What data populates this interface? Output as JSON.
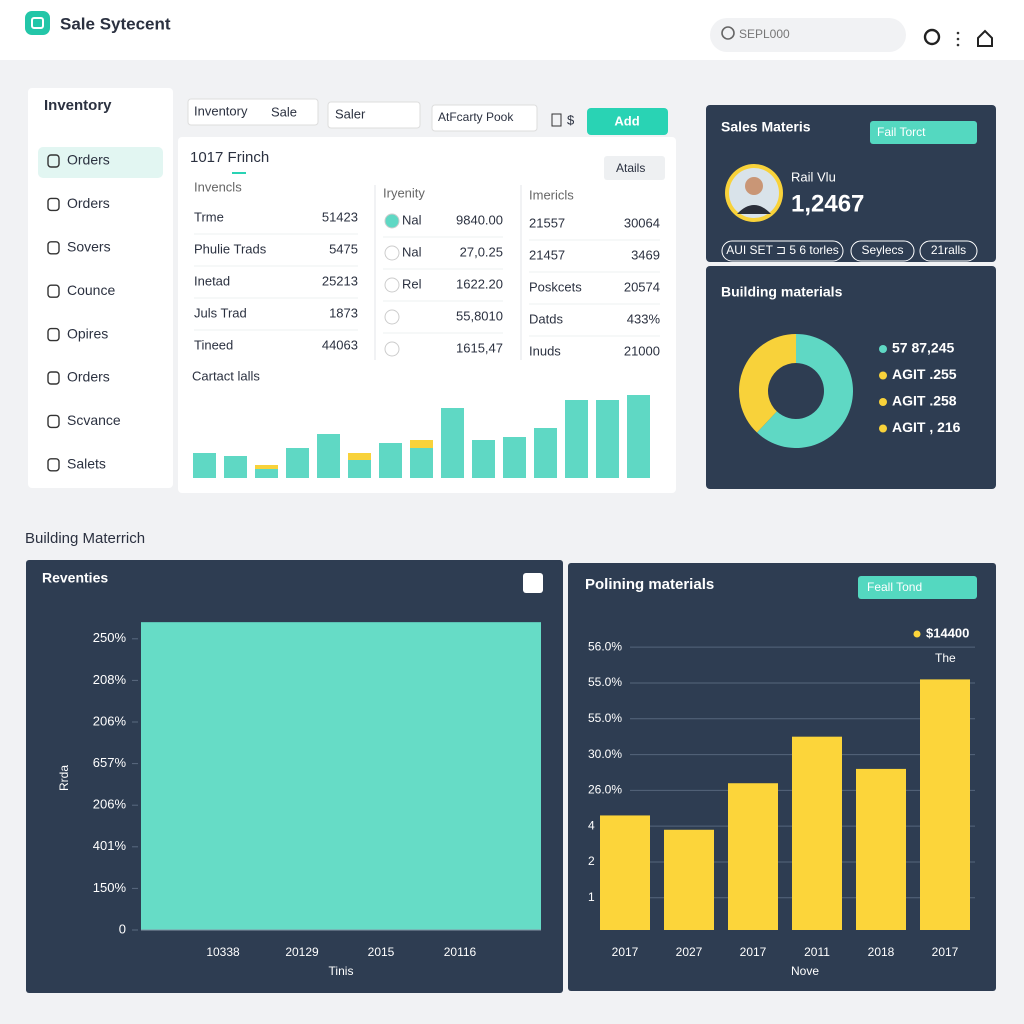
{
  "header": {
    "title": "Sale Sytecent",
    "search": "SEPL000"
  },
  "sidebar": {
    "title": "Inventory",
    "items": [
      "Orders",
      "Orders",
      "Sovers",
      "Counce",
      "Opires",
      "Orders",
      "Scvance",
      "Salets"
    ]
  },
  "toolbar": {
    "filters": [
      {
        "label": "Inventory",
        "value": "Sale"
      },
      {
        "value": "Saler"
      },
      {
        "value": "AtFcarty Pook"
      }
    ],
    "currency": "$",
    "button": "Add"
  },
  "table_panel": {
    "title": "1017 Frinch",
    "dropdown": "Atails",
    "groups": [
      {
        "header": "Invencls",
        "rows": [
          {
            "label": "Trme",
            "value": "51423"
          },
          {
            "label": "Phulie Trads",
            "value": "5475"
          },
          {
            "label": "Inetad",
            "value": "25213"
          },
          {
            "label": "Juls Trad",
            "value": "1873"
          },
          {
            "label": "Tineed",
            "value": "44063"
          }
        ]
      },
      {
        "header": "Iryenity",
        "rows": [
          {
            "label": "Nal",
            "value": "9840.00"
          },
          {
            "label": "Nal",
            "value": "27,0.25"
          },
          {
            "label": "Rel",
            "value": "1622.20"
          },
          {
            "value": "55,8010"
          },
          {
            "value": "1615,47"
          }
        ]
      },
      {
        "header": "Imericls",
        "rows": [
          {
            "label": "21557",
            "value": "30064"
          },
          {
            "label": "21457",
            "value": "3469"
          },
          {
            "label": "Poskcets",
            "value": "20574"
          },
          {
            "label": "Datds",
            "value": "433%"
          },
          {
            "label": "Inuds",
            "value": "21000"
          }
        ]
      }
    ],
    "chart": {
      "type": "bar",
      "title": "Cartact lalls",
      "ylim": [
        0,
        90
      ],
      "series": [
        {
          "color": "#5fd8c4",
          "values": [
            25,
            22,
            9,
            30,
            44,
            18,
            35,
            30,
            70,
            38,
            41,
            50,
            78,
            78,
            83
          ]
        },
        {
          "color": "#f8d23a",
          "values": [
            0,
            0,
            4,
            0,
            0,
            7,
            0,
            8,
            0,
            0,
            0,
            0,
            0,
            0,
            0
          ]
        }
      ]
    }
  },
  "sales_panel": {
    "title": "Sales Materis",
    "dropdown": "Fail Torct",
    "person": "Rail Vlu",
    "amount": "1,2467",
    "tags": [
      "AUI SET ⊐ 5 6 torles",
      "Seylecs",
      "21ralls"
    ]
  },
  "donut_panel": {
    "type": "pie",
    "title": "Building materials",
    "values": [
      62,
      38
    ],
    "colors": [
      "#5fd8c4",
      "#f8d23a"
    ],
    "legend": [
      {
        "label": "57 87,245",
        "color": "#5fd8c4"
      },
      {
        "label": "AGIT .255",
        "color": "#f8d23a"
      },
      {
        "label": "AGIT .258",
        "color": "#f8d23a"
      },
      {
        "label": "AGIT , 216",
        "color": "#f8d23a"
      }
    ]
  },
  "section_title": "Building Materrich",
  "revenue_chart": {
    "type": "area",
    "title": "Reventies",
    "color": "#66dcc6",
    "value": 7.4,
    "ylim": [
      0,
      7.6
    ],
    "yticks": [
      {
        "value": 7,
        "label": "250%"
      },
      {
        "value": 6,
        "label": "208%"
      },
      {
        "value": 5,
        "label": "206%"
      },
      {
        "value": 4,
        "label": "657%"
      },
      {
        "value": 3,
        "label": "206%"
      },
      {
        "value": 2,
        "label": "401%"
      },
      {
        "value": 1,
        "label": "150%"
      },
      0
    ],
    "categories": [
      "10338",
      "20129",
      "2015",
      "20116"
    ],
    "x_label": "Tinis",
    "y_label": "Rrda"
  },
  "yellow_chart": {
    "type": "bar",
    "title": "Polining materials",
    "dropdown": "Feall Tond",
    "legend": "$14400",
    "legend_note": "The",
    "color": "#fcd53a",
    "ylim": [
      0,
      8.1
    ],
    "yticks": [
      {
        "value": 7.9,
        "label": "56.0%"
      },
      {
        "value": 6.9,
        "label": "55.0%"
      },
      {
        "value": 5.9,
        "label": "55.0%"
      },
      {
        "value": 4.9,
        "label": "30.0%"
      },
      {
        "value": 3.9,
        "label": "26.0%"
      },
      {
        "value": 2.9,
        "label": "4"
      },
      {
        "value": 1.9,
        "label": "2"
      },
      {
        "value": 0.9,
        "label": "1"
      }
    ],
    "categories": [
      "2017",
      "2027",
      "2017",
      "2011",
      "2018",
      "2017"
    ],
    "values": [
      3.2,
      2.8,
      4.1,
      5.4,
      4.5,
      7.0
    ],
    "x_label": "Nove"
  }
}
